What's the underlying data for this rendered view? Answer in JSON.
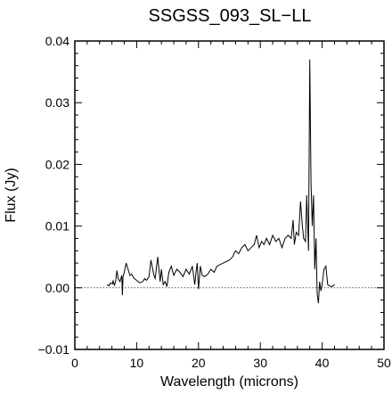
{
  "chart_data": {
    "type": "line",
    "title": "SSGSS_093_SL−LL",
    "xlabel": "Wavelength (microns)",
    "ylabel": "Flux (Jy)",
    "xlim": [
      0,
      50
    ],
    "ylim": [
      -0.01,
      0.04
    ],
    "x_ticks": [
      0,
      10,
      20,
      30,
      40,
      50
    ],
    "x_tick_labels": [
      "0",
      "10",
      "20",
      "30",
      "40",
      "50"
    ],
    "y_ticks": [
      -0.01,
      0.0,
      0.01,
      0.02,
      0.03,
      0.04
    ],
    "y_tick_labels": [
      "−0.01",
      "0.00",
      "0.01",
      "0.02",
      "0.03",
      "0.04"
    ],
    "zero_line": {
      "y": 0,
      "style": "dotted"
    },
    "grid": false,
    "series": [
      {
        "x": [
          5.2,
          5.5,
          5.8,
          6.1,
          6.2,
          6.4,
          6.6,
          6.8,
          7.0,
          7.3,
          7.6,
          7.7,
          7.8,
          8.0,
          8.3,
          8.6,
          8.9,
          9.2,
          9.6,
          10.0,
          10.5,
          11.0,
          11.3,
          11.6,
          12.0,
          12.3,
          12.6,
          12.8,
          13.0,
          13.4,
          13.8,
          14.0,
          14.3,
          14.6,
          14.9,
          15.2,
          15.6,
          16.0,
          16.5,
          17.0,
          17.5,
          18.0,
          18.5,
          19.0,
          19.4,
          19.6,
          19.8,
          20.0,
          20.3,
          20.6,
          21.0,
          21.5,
          22.0,
          22.5,
          23.0,
          24.0,
          25.0,
          25.5,
          26.0,
          26.5,
          27.0,
          27.5,
          28.0,
          28.5,
          29.0,
          29.4,
          29.8,
          30.2,
          30.6,
          31.0,
          31.5,
          32.0,
          32.5,
          33.0,
          33.5,
          34.0,
          34.5,
          35.0,
          35.3,
          35.5,
          35.8,
          36.2,
          36.5,
          36.8,
          37.0,
          37.3,
          37.5,
          37.8,
          38.0,
          38.2,
          38.4,
          38.6,
          38.8,
          39.0,
          39.2,
          39.4,
          39.6,
          39.8,
          40.0,
          40.3,
          40.6,
          40.9,
          41.2,
          41.6,
          42.0
        ],
        "y": [
          0.0005,
          0.0003,
          0.0008,
          0.0006,
          0.0012,
          0.0004,
          0.001,
          0.0028,
          0.0015,
          0.001,
          0.002,
          -0.0012,
          0.0018,
          0.0025,
          0.004,
          0.003,
          0.002,
          0.0022,
          0.0015,
          0.0012,
          0.0008,
          0.001,
          0.0015,
          0.0012,
          0.0018,
          0.0045,
          0.003,
          0.002,
          0.0015,
          0.005,
          0.001,
          0.003,
          0.0005,
          0.001,
          0.0002,
          0.0025,
          0.0035,
          0.002,
          0.003,
          0.0025,
          0.0018,
          0.003,
          0.0022,
          0.0035,
          0.0005,
          0.0025,
          0.004,
          -0.0002,
          0.0035,
          0.002,
          0.0018,
          0.0022,
          0.003,
          0.0025,
          0.0035,
          0.004,
          0.0045,
          0.005,
          0.006,
          0.0055,
          0.0065,
          0.007,
          0.006,
          0.0065,
          0.007,
          0.0085,
          0.0065,
          0.0075,
          0.007,
          0.008,
          0.007,
          0.0085,
          0.0075,
          0.008,
          0.0065,
          0.008,
          0.0085,
          0.008,
          0.011,
          0.007,
          0.009,
          0.0085,
          0.014,
          0.01,
          0.008,
          0.0075,
          0.015,
          0.006,
          0.037,
          0.017,
          0.01,
          0.015,
          0.003,
          0.008,
          -0.001,
          -0.0025,
          0.001,
          -0.0005,
          0.0005,
          0.003,
          0.0035,
          0.0005,
          0.0003,
          0.0002,
          0.0005
        ]
      }
    ]
  }
}
